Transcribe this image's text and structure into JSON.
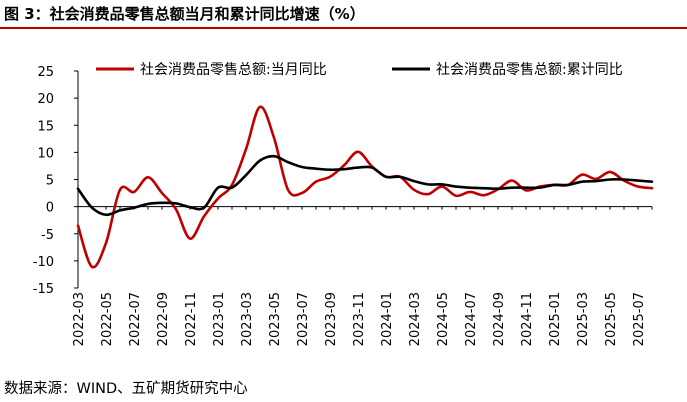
{
  "figure_title": "图 3：社会消费品零售总额当月和累计同比增速（%）",
  "source": "数据来源：WIND、五矿期货研究中心",
  "colors": {
    "series_monthly": "#c00000",
    "series_cumulative": "#000000",
    "title_rule": "#b30000"
  },
  "chart_data": {
    "type": "line",
    "title": "",
    "xlabel": "",
    "ylabel": "",
    "ylim": [
      -15,
      25
    ],
    "yticks": [
      25,
      20,
      15,
      10,
      5,
      0,
      -5,
      -10,
      -15
    ],
    "grid": false,
    "legend": "top",
    "x": [
      "2022-03",
      "2022-04",
      "2022-05",
      "2022-06",
      "2022-07",
      "2022-08",
      "2022-09",
      "2022-10",
      "2022-11",
      "2022-12",
      "2023-01",
      "2023-02",
      "2023-03",
      "2023-04",
      "2023-05",
      "2023-06",
      "2023-07",
      "2023-08",
      "2023-09",
      "2023-10",
      "2023-11",
      "2023-12",
      "2024-01",
      "2024-02",
      "2024-03",
      "2024-04",
      "2024-05",
      "2024-06",
      "2024-07",
      "2024-08",
      "2024-09",
      "2024-10",
      "2024-11",
      "2024-12",
      "2025-01",
      "2025-02",
      "2025-03",
      "2025-04",
      "2025-05",
      "2025-06",
      "2025-07",
      "2025-08"
    ],
    "xtick_labels": [
      "2022-03",
      "2022-05",
      "2022-07",
      "2022-09",
      "2022-11",
      "2023-01",
      "2023-03",
      "2023-05",
      "2023-07",
      "2023-09",
      "2023-11",
      "2024-01",
      "2024-03",
      "2024-05",
      "2024-07",
      "2024-09",
      "2024-11",
      "2025-01",
      "2025-03",
      "2025-05",
      "2025-07"
    ],
    "series": [
      {
        "name": "社会消费品零售总额:当月同比",
        "values": [
          -3.5,
          -11.1,
          -6.7,
          3.1,
          2.7,
          5.4,
          2.5,
          -0.5,
          -5.9,
          -1.8,
          1.5,
          4.0,
          10.6,
          18.4,
          12.7,
          3.1,
          2.5,
          4.6,
          5.5,
          7.6,
          10.1,
          7.4,
          5.5,
          5.5,
          3.1,
          2.3,
          3.7,
          2.0,
          2.7,
          2.1,
          3.2,
          4.8,
          3.0,
          3.7,
          4.0,
          4.0,
          5.9,
          5.1,
          6.4,
          4.8,
          3.7,
          3.4
        ]
      },
      {
        "name": "社会消费品零售总额:累计同比",
        "values": [
          3.3,
          -0.2,
          -1.5,
          -0.7,
          -0.2,
          0.5,
          0.7,
          0.6,
          -0.1,
          -0.2,
          3.5,
          3.5,
          5.8,
          8.5,
          9.3,
          8.2,
          7.3,
          7.0,
          6.8,
          6.9,
          7.2,
          7.2,
          5.5,
          5.5,
          4.7,
          4.1,
          4.1,
          3.7,
          3.5,
          3.4,
          3.3,
          3.5,
          3.5,
          3.5,
          4.0,
          4.0,
          4.6,
          4.7,
          5.0,
          5.0,
          4.8,
          4.6
        ]
      }
    ]
  }
}
